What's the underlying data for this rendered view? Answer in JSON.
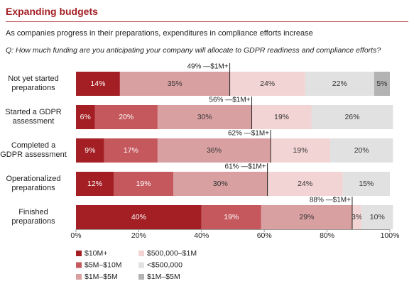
{
  "header": {
    "title": "Expanding budgets",
    "subtitle": "As companies progress in their preparations, expenditures in compliance efforts increase",
    "question": "Q: How much funding are you anticipating your company will allocate to GDPR readiness and compliance efforts?"
  },
  "chart_data": {
    "type": "stacked-barh",
    "categories": [
      "Not yet started\npreparations",
      "Started a GDPR\nassessment",
      "Completed a\nGDPR assessment",
      "Operationalized\npreparations",
      "Finished\npreparations"
    ],
    "series": [
      {
        "name": "$10M+",
        "color": "#a31f24",
        "values": [
          14,
          6,
          9,
          12,
          40
        ],
        "value_labels": [
          "14%",
          "6%",
          "9%",
          "12%",
          "40%"
        ]
      },
      {
        "name": "$5M–$10M",
        "color": "#c4585c",
        "values": [
          null,
          20,
          17,
          19,
          19
        ],
        "value_labels": [
          null,
          "20%",
          "17%",
          "19%",
          "19%"
        ]
      },
      {
        "name": "$1M–$5M",
        "color": "#d9a0a2",
        "values": [
          35,
          30,
          36,
          30,
          29
        ],
        "value_labels": [
          "35%",
          "30%",
          "36%",
          "30%",
          "29%"
        ]
      },
      {
        "name": "$500,000–$1M",
        "color": "#f3d4d4",
        "values": [
          24,
          19,
          19,
          24,
          3
        ],
        "value_labels": [
          "24%",
          "19%",
          "19%",
          "24%",
          "3%"
        ]
      },
      {
        "name": "<$500,000",
        "color": "#e1e1e1",
        "values": [
          22,
          26,
          20,
          15,
          10
        ],
        "value_labels": [
          "22%",
          "26%",
          "20%",
          "15%",
          "10%"
        ]
      },
      {
        "name": "$1M–$5M",
        "color": "#b3b3b3",
        "values": [
          5,
          null,
          null,
          null,
          null
        ],
        "value_labels": [
          "5%",
          null,
          null,
          null,
          null
        ]
      }
    ],
    "annotations": [
      {
        "value": 49,
        "label": "49% —$1M+"
      },
      {
        "value": 56,
        "label": "56% —$1M+"
      },
      {
        "value": 62,
        "label": "62% —$1M+"
      },
      {
        "value": 61,
        "label": "61% —$1M+"
      },
      {
        "value": 88,
        "label": "88% —$1M+"
      }
    ],
    "xlim": [
      0,
      100
    ],
    "xticks": [
      {
        "value": 0,
        "label": "0%"
      },
      {
        "value": 20,
        "label": "20%"
      },
      {
        "value": 40,
        "label": "40%"
      },
      {
        "value": 60,
        "label": "60%"
      },
      {
        "value": 80,
        "label": "80%"
      },
      {
        "value": 100,
        "label": "100%"
      }
    ]
  }
}
